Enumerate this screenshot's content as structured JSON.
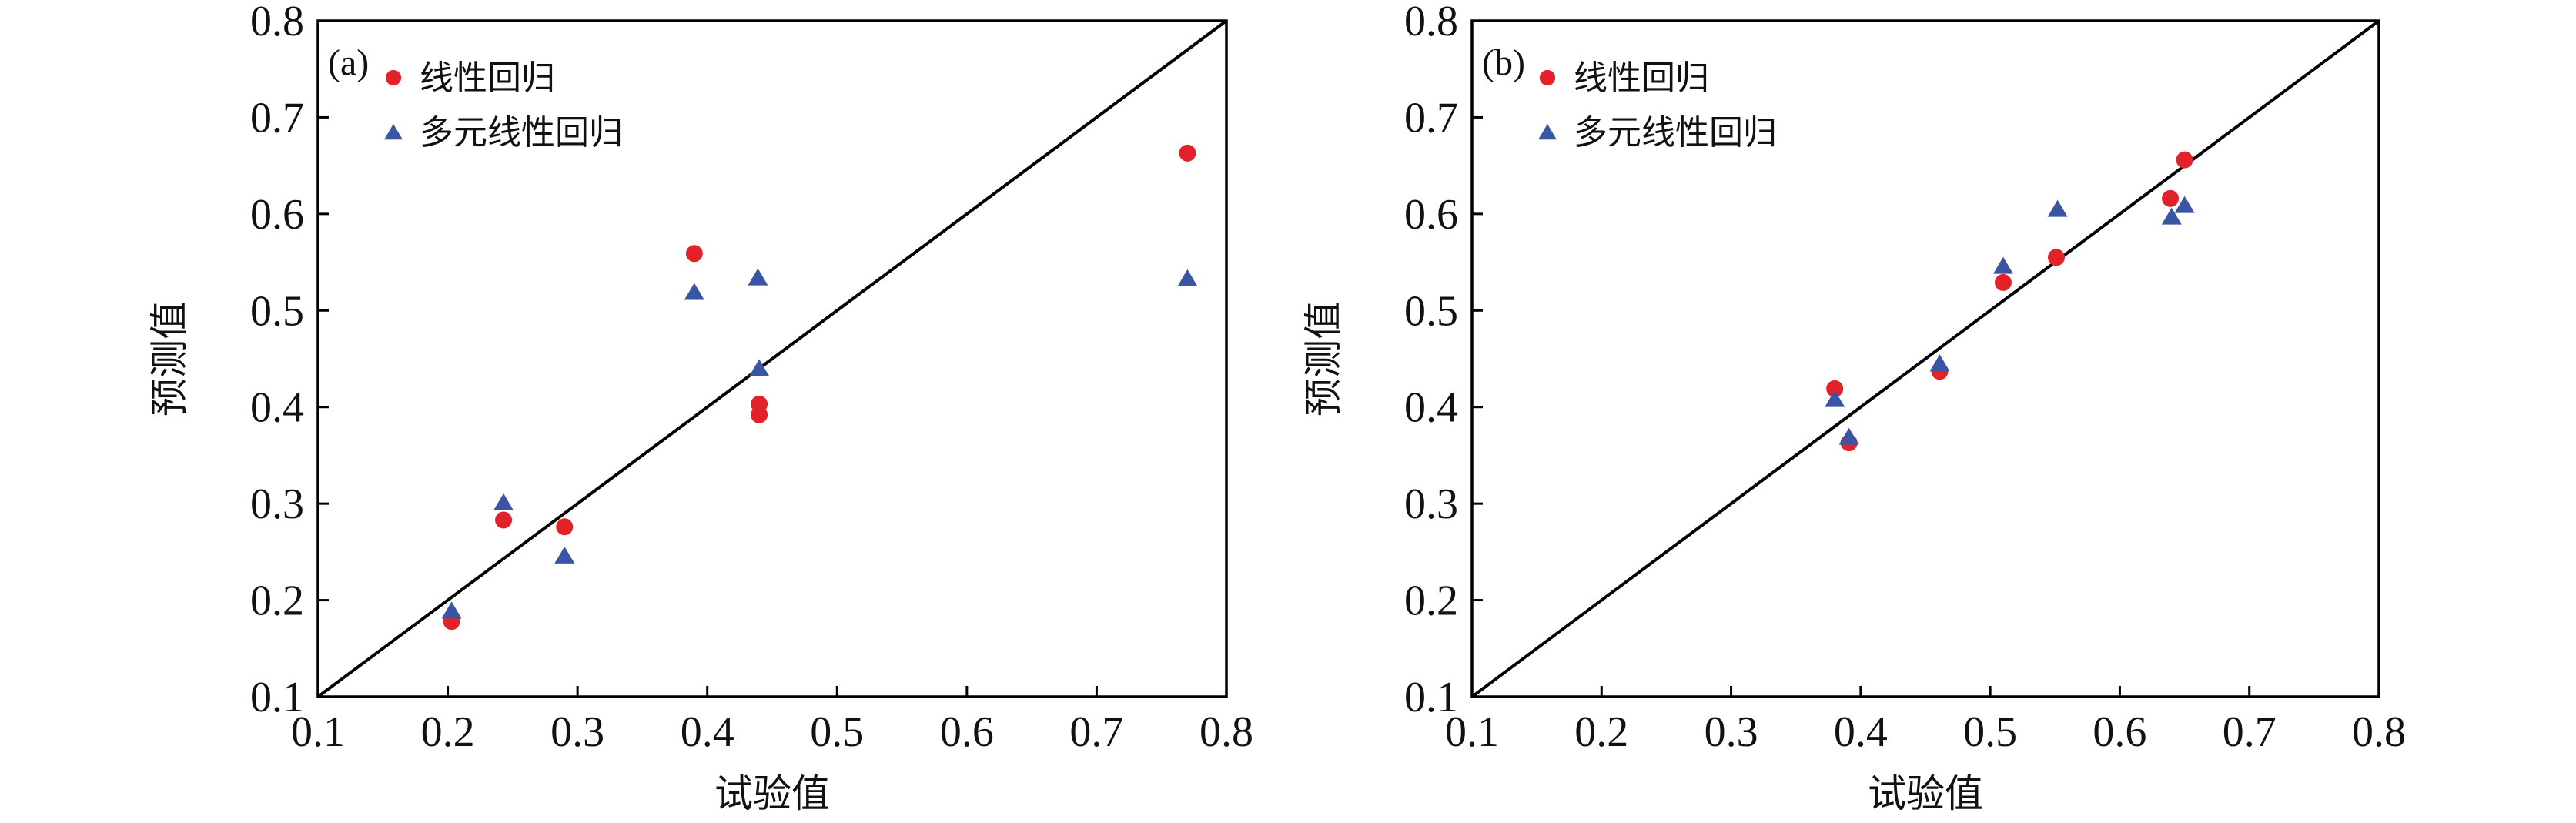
{
  "figure": {
    "background": "#ffffff",
    "axis_color": "#000000",
    "reference_line": "y = x diagonal",
    "legend": [
      {
        "label": "线性回归",
        "marker": "circle",
        "color": "#e32128"
      },
      {
        "label": "多元线性回归",
        "marker": "triangle",
        "color": "#3a55a4"
      }
    ]
  },
  "chart_data": [
    {
      "type": "scatter",
      "panel_label": "(a)",
      "xlabel": "试验值",
      "ylabel": "预测值",
      "xlim": [
        0.1,
        0.8
      ],
      "ylim": [
        0.1,
        0.8
      ],
      "tick_step": 0.1,
      "grid": false,
      "legend_position": "top-left",
      "diagonal": true,
      "series": [
        {
          "name": "线性回归",
          "marker": "circle",
          "color": "#e32128",
          "points": [
            [
              0.203,
              0.178
            ],
            [
              0.243,
              0.283
            ],
            [
              0.29,
              0.276
            ],
            [
              0.39,
              0.559
            ],
            [
              0.44,
              0.403
            ],
            [
              0.44,
              0.392
            ],
            [
              0.77,
              0.663
            ]
          ]
        },
        {
          "name": "多元线性回归",
          "marker": "triangle",
          "color": "#3a55a4",
          "points": [
            [
              0.203,
              0.189
            ],
            [
              0.243,
              0.301
            ],
            [
              0.29,
              0.246
            ],
            [
              0.39,
              0.519
            ],
            [
              0.439,
              0.534
            ],
            [
              0.44,
              0.44
            ],
            [
              0.77,
              0.533
            ]
          ]
        }
      ]
    },
    {
      "type": "scatter",
      "panel_label": "(b)",
      "xlabel": "试验值",
      "ylabel": "预测值",
      "xlim": [
        0.1,
        0.8
      ],
      "ylim": [
        0.1,
        0.8
      ],
      "tick_step": 0.1,
      "grid": false,
      "legend_position": "top-left",
      "diagonal": true,
      "series": [
        {
          "name": "线性回归",
          "marker": "circle",
          "color": "#e32128",
          "points": [
            [
              0.38,
              0.419
            ],
            [
              0.391,
              0.363
            ],
            [
              0.461,
              0.437
            ],
            [
              0.51,
              0.529
            ],
            [
              0.551,
              0.555
            ],
            [
              0.639,
              0.616
            ],
            [
              0.65,
              0.656
            ]
          ]
        },
        {
          "name": "多元线性回归",
          "marker": "triangle",
          "color": "#3a55a4",
          "points": [
            [
              0.38,
              0.408
            ],
            [
              0.391,
              0.369
            ],
            [
              0.461,
              0.445
            ],
            [
              0.51,
              0.546
            ],
            [
              0.552,
              0.605
            ],
            [
              0.64,
              0.597
            ],
            [
              0.65,
              0.609
            ]
          ]
        }
      ]
    }
  ]
}
